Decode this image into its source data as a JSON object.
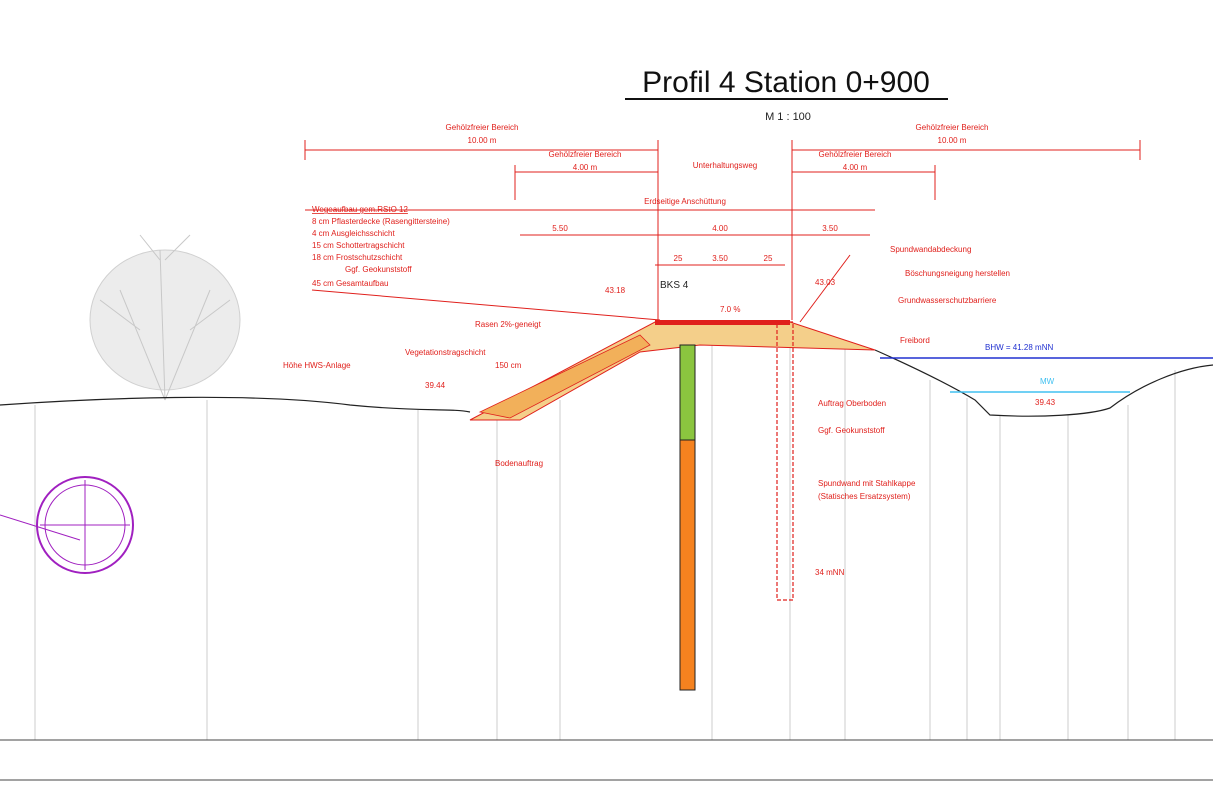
{
  "header": {
    "title": "Profil 4 Station 0+900",
    "scale": "M 1 : 100"
  },
  "dimensions": {
    "left_zone": {
      "label": "Gehölzfreier Bereich",
      "width": "10.00 m"
    },
    "right_zone": {
      "label": "Gehölzfreier Bereich",
      "width": "10.00 m"
    },
    "left_inner": {
      "label": "Gehölzfreier Bereich",
      "width": "4.00 m"
    },
    "right_inner": {
      "label": "Gehölzfreier Bereich",
      "width": "4.00 m"
    },
    "path": "Unterhaltungsweg",
    "fill": "Erdseitige Anschüttung",
    "widths": [
      "5.50",
      "4.00",
      "3.50"
    ],
    "crest": [
      "25",
      "3.50",
      "25"
    ]
  },
  "layers": {
    "title": "Wegeaufbau gem.RStO 12",
    "items": [
      "8 cm  Pflasterdecke (Rasengittersteine)",
      "4 cm  Ausgleichsschicht",
      "15 cm  Schottertragschicht",
      "18 cm  Frostschutzschicht",
      "Ggf. Geokunststoff",
      "45 cm  Gesamtaufbau"
    ]
  },
  "labels": {
    "bks": "BKS 4",
    "slope": "7.0 %",
    "crest_left": "43.18",
    "crest_right": "43.03",
    "cover": "Spundwandabdeckung",
    "embankment": "Böschungsneigung herstellen",
    "barrier": "Grundwasserschutzbarriere",
    "freeboard": "Freibord",
    "hw": "BHW = 41.28 mNN",
    "mw": "MW",
    "bed": "39.43",
    "lawn": "Rasen 2%-geneigt",
    "veg": "Vegetationstragschicht",
    "veg_thick": "150 cm",
    "height": "Höhe HWS-Anlage",
    "toe": "39.44",
    "soil": "Bodenauftrag",
    "topsoil": "Auftrag Oberboden",
    "geo": "Ggf. Geokunststoff",
    "pile": "Spundwand mit Stahlkappe",
    "pile_note": "(Statisches Ersatzsystem)",
    "pile_end": "34 mNN"
  }
}
